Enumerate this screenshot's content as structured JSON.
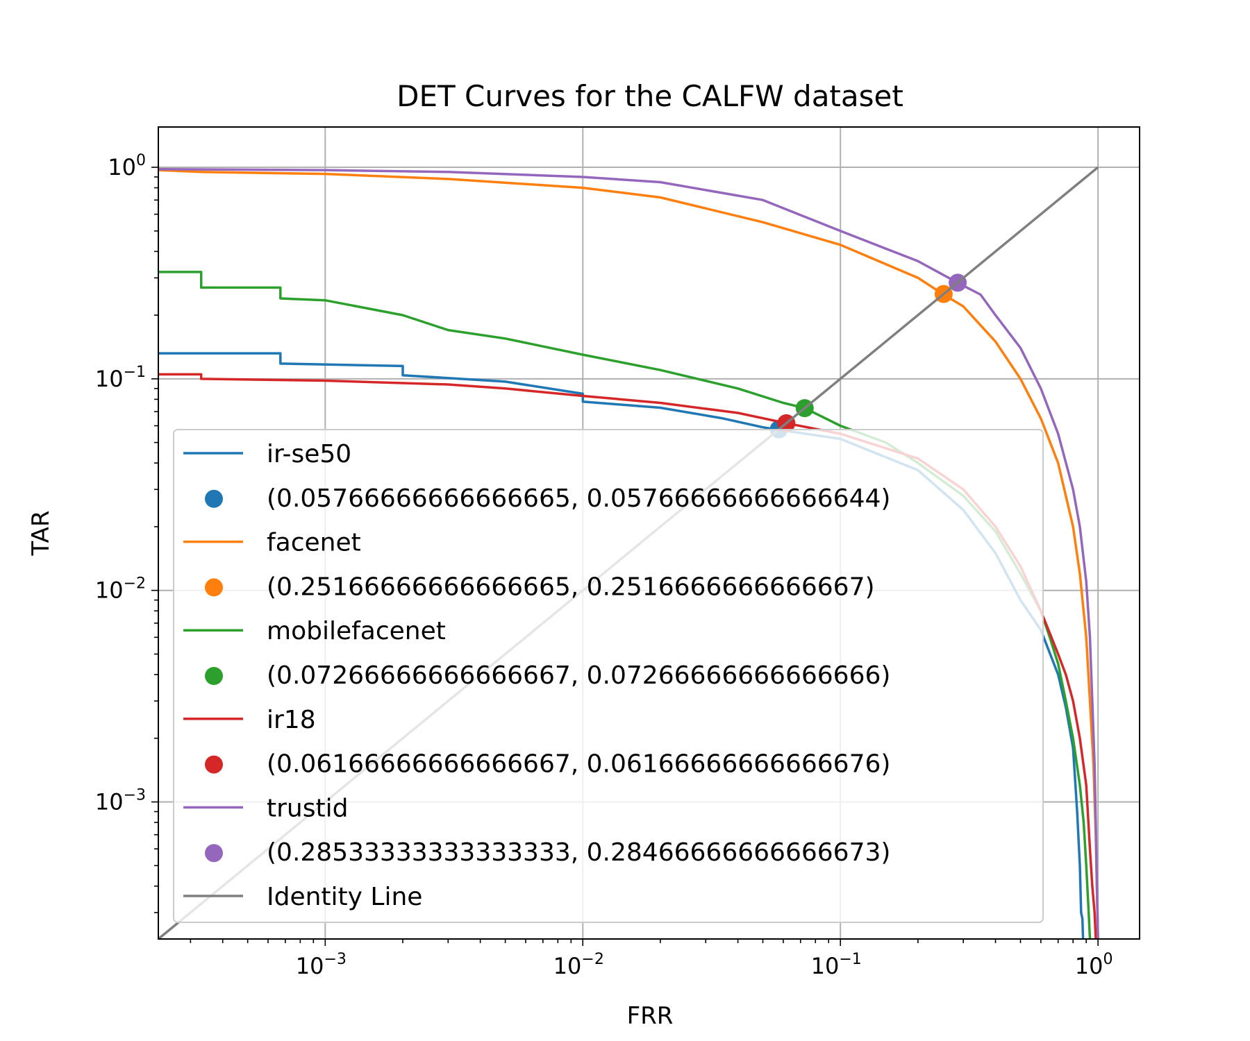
{
  "chart_data": {
    "type": "line",
    "title": "DET Curves for the CALFW dataset",
    "xlabel": "FRR",
    "ylabel": "TAR",
    "xscale": "log",
    "yscale": "log",
    "xlim": [
      0.000225,
      1.45
    ],
    "ylim": [
      0.000225,
      1.55
    ],
    "grid": true,
    "legend_position": "lower-left",
    "x_ticks": [
      {
        "base": "10",
        "exp": "−3"
      },
      {
        "base": "10",
        "exp": "−2"
      },
      {
        "base": "10",
        "exp": "−1"
      },
      {
        "base": "10",
        "exp": "0"
      }
    ],
    "y_ticks": [
      {
        "base": "10",
        "exp": "−3"
      },
      {
        "base": "10",
        "exp": "−2"
      },
      {
        "base": "10",
        "exp": "−1"
      },
      {
        "base": "10",
        "exp": "0"
      }
    ],
    "series": [
      {
        "name": "ir-se50",
        "color": "#1f77b4",
        "x": [
          0.000225,
          0.00067,
          0.00067,
          0.002,
          0.002,
          0.005,
          0.01,
          0.01,
          0.02,
          0.035,
          0.05,
          0.06,
          0.1,
          0.2,
          0.3,
          0.4,
          0.5,
          0.6,
          0.7,
          0.75,
          0.8,
          0.83,
          0.85,
          0.86,
          0.87,
          0.875
        ],
        "y": [
          0.132,
          0.132,
          0.118,
          0.115,
          0.104,
          0.097,
          0.085,
          0.078,
          0.073,
          0.065,
          0.059,
          0.057,
          0.052,
          0.037,
          0.024,
          0.015,
          0.009,
          0.0065,
          0.004,
          0.0028,
          0.0018,
          0.0009,
          0.0005,
          0.0003,
          0.00028,
          0.000225
        ]
      },
      {
        "name": "(0.05766666666666665, 0.05766666666666644)",
        "color": "#1f77b4",
        "marker": true,
        "x": [
          0.05766666666666665
        ],
        "y": [
          0.05766666666666644
        ]
      },
      {
        "name": "facenet",
        "color": "#ff7f0e",
        "x": [
          0.000225,
          0.00033,
          0.001,
          0.003,
          0.01,
          0.02,
          0.05,
          0.1,
          0.2,
          0.25,
          0.3,
          0.4,
          0.5,
          0.6,
          0.7,
          0.8,
          0.85,
          0.9,
          0.93,
          0.96,
          0.98,
          0.99,
          1.0
        ],
        "y": [
          0.97,
          0.95,
          0.93,
          0.88,
          0.8,
          0.72,
          0.55,
          0.43,
          0.3,
          0.2517,
          0.22,
          0.15,
          0.1,
          0.065,
          0.04,
          0.02,
          0.012,
          0.006,
          0.003,
          0.0015,
          0.0007,
          0.0004,
          0.000225
        ]
      },
      {
        "name": "(0.25166666666666665, 0.2516666666666667)",
        "color": "#ff7f0e",
        "marker": true,
        "x": [
          0.25166666666666665
        ],
        "y": [
          0.2516666666666667
        ]
      },
      {
        "name": "mobilefacenet",
        "color": "#2ca02c",
        "x": [
          0.000225,
          0.00033,
          0.00033,
          0.00067,
          0.00067,
          0.001,
          0.002,
          0.003,
          0.005,
          0.01,
          0.02,
          0.04,
          0.06,
          0.0727,
          0.1,
          0.15,
          0.2,
          0.3,
          0.4,
          0.5,
          0.6,
          0.65,
          0.7,
          0.75,
          0.8,
          0.85,
          0.88,
          0.9,
          0.92,
          0.93
        ],
        "y": [
          0.32,
          0.32,
          0.27,
          0.27,
          0.24,
          0.235,
          0.2,
          0.17,
          0.155,
          0.13,
          0.11,
          0.09,
          0.077,
          0.0727,
          0.06,
          0.05,
          0.04,
          0.028,
          0.019,
          0.012,
          0.008,
          0.006,
          0.0045,
          0.003,
          0.002,
          0.0012,
          0.0008,
          0.0005,
          0.0003,
          0.000225
        ]
      },
      {
        "name": "(0.07266666666666667, 0.07266666666666666)",
        "color": "#2ca02c",
        "marker": true,
        "x": [
          0.07266666666666667
        ],
        "y": [
          0.07266666666666666
        ]
      },
      {
        "name": "ir18",
        "color": "#d62728",
        "x": [
          0.000225,
          0.00033,
          0.00033,
          0.001,
          0.003,
          0.005,
          0.01,
          0.02,
          0.04,
          0.0617,
          0.1,
          0.2,
          0.3,
          0.4,
          0.5,
          0.6,
          0.7,
          0.75,
          0.8,
          0.85,
          0.9,
          0.93,
          0.95,
          0.97,
          0.98
        ],
        "y": [
          0.105,
          0.105,
          0.1,
          0.098,
          0.094,
          0.09,
          0.083,
          0.077,
          0.069,
          0.0617,
          0.055,
          0.042,
          0.03,
          0.02,
          0.013,
          0.008,
          0.005,
          0.004,
          0.003,
          0.002,
          0.0012,
          0.0006,
          0.0004,
          0.0003,
          0.000225
        ]
      },
      {
        "name": "(0.06166666666666667, 0.06166666666666676)",
        "color": "#d62728",
        "marker": true,
        "x": [
          0.06166666666666667
        ],
        "y": [
          0.06166666666666676
        ]
      },
      {
        "name": "trustid",
        "color": "#9467bd",
        "x": [
          0.000225,
          0.001,
          0.003,
          0.01,
          0.02,
          0.05,
          0.1,
          0.2,
          0.285,
          0.35,
          0.4,
          0.5,
          0.6,
          0.7,
          0.8,
          0.85,
          0.9,
          0.93,
          0.95,
          0.97,
          0.98,
          0.99,
          1.0
        ],
        "y": [
          0.98,
          0.97,
          0.95,
          0.9,
          0.85,
          0.7,
          0.5,
          0.36,
          0.2847,
          0.25,
          0.2,
          0.14,
          0.09,
          0.055,
          0.03,
          0.02,
          0.011,
          0.006,
          0.003,
          0.0015,
          0.0008,
          0.0004,
          0.000225
        ]
      },
      {
        "name": "(0.28533333333333333, 0.28466666666666673)",
        "color": "#9467bd",
        "marker": true,
        "x": [
          0.2853333333333333
        ],
        "y": [
          0.28466666666666673
        ]
      },
      {
        "name": "Identity Line",
        "color": "#7f7f7f",
        "x": [
          0.000225,
          1.0
        ],
        "y": [
          0.000225,
          1.0
        ]
      }
    ]
  }
}
